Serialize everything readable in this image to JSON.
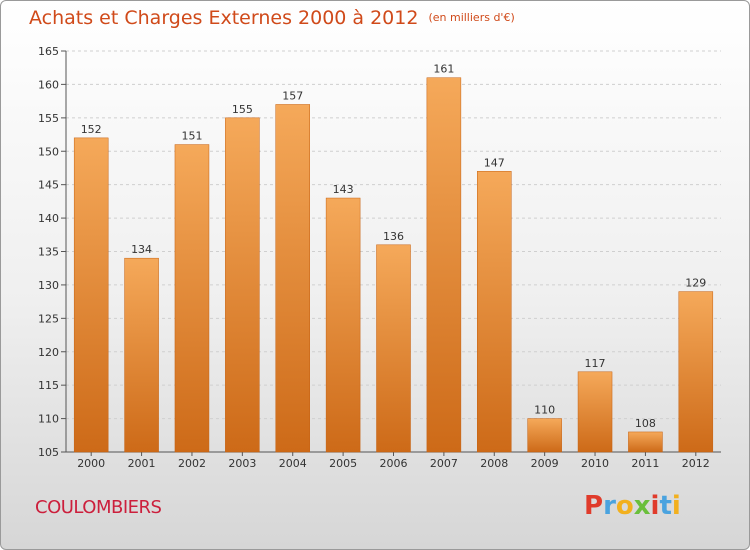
{
  "header": {
    "title": "Achats et Charges Externes 2000 à 2012",
    "unit": "(en milliers d'€)"
  },
  "footer": {
    "place": "COULOMBIERS",
    "logo_letters": [
      "P",
      "r",
      "o",
      "x",
      "i",
      "t",
      "i"
    ],
    "logo_colors": [
      "#e03b2b",
      "#4aa3df",
      "#f2b01e",
      "#6abf3b",
      "#e03b2b",
      "#4aa3df",
      "#f2b01e"
    ]
  },
  "colors": {
    "bar_top": "#f5a95a",
    "bar_bottom": "#cd6a18",
    "title": "#d04a1a",
    "place": "#cc1f3c"
  },
  "chart_data": {
    "type": "bar",
    "title": "Achats et Charges Externes 2000 à 2012",
    "subtitle": "(en milliers d'€)",
    "categories": [
      "2000",
      "2001",
      "2002",
      "2003",
      "2004",
      "2005",
      "2006",
      "2007",
      "2008",
      "2009",
      "2010",
      "2011",
      "2012"
    ],
    "values": [
      152,
      134,
      151,
      155,
      157,
      143,
      136,
      161,
      147,
      110,
      117,
      108,
      129
    ],
    "ylim": [
      105,
      165
    ],
    "yticks": [
      105,
      110,
      115,
      120,
      125,
      130,
      135,
      140,
      145,
      150,
      155,
      160,
      165
    ],
    "grid": true,
    "legend": "none"
  }
}
